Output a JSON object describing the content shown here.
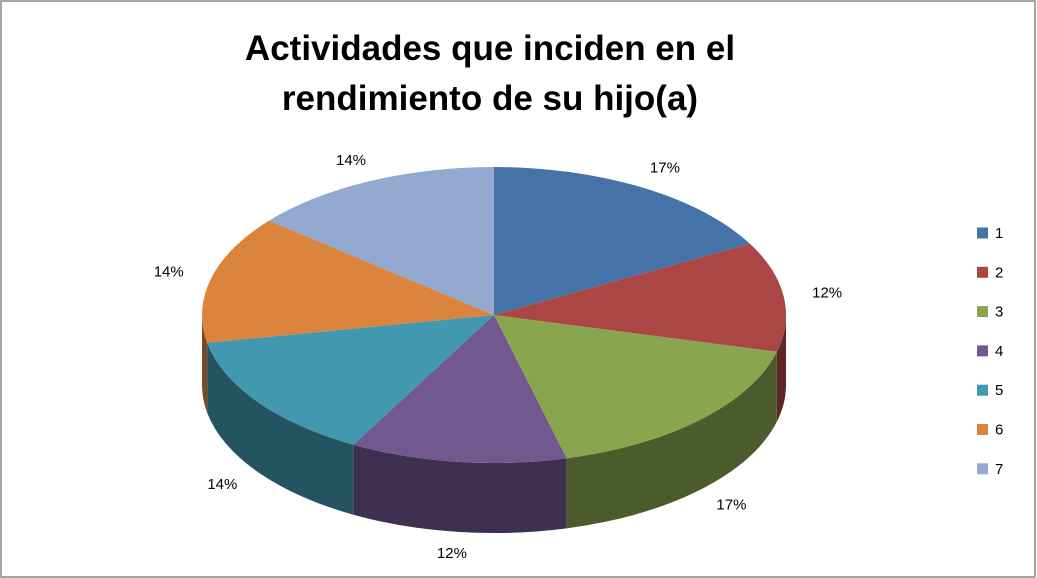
{
  "chart_data": {
    "type": "pie3d",
    "title": "Actividades que inciden en el rendimiento de su hijo(a)",
    "categories": [
      "1",
      "2",
      "3",
      "4",
      "5",
      "6",
      "7"
    ],
    "values": [
      17,
      12,
      17,
      12,
      14,
      14,
      14
    ],
    "value_labels": [
      "17%",
      "12%",
      "17%",
      "12%",
      "14%",
      "14%",
      "14%"
    ],
    "colors": [
      "#4572a7",
      "#aa4643",
      "#89a54e",
      "#71588f",
      "#4198af",
      "#db843d",
      "#93a9cf"
    ],
    "legend": "right"
  }
}
